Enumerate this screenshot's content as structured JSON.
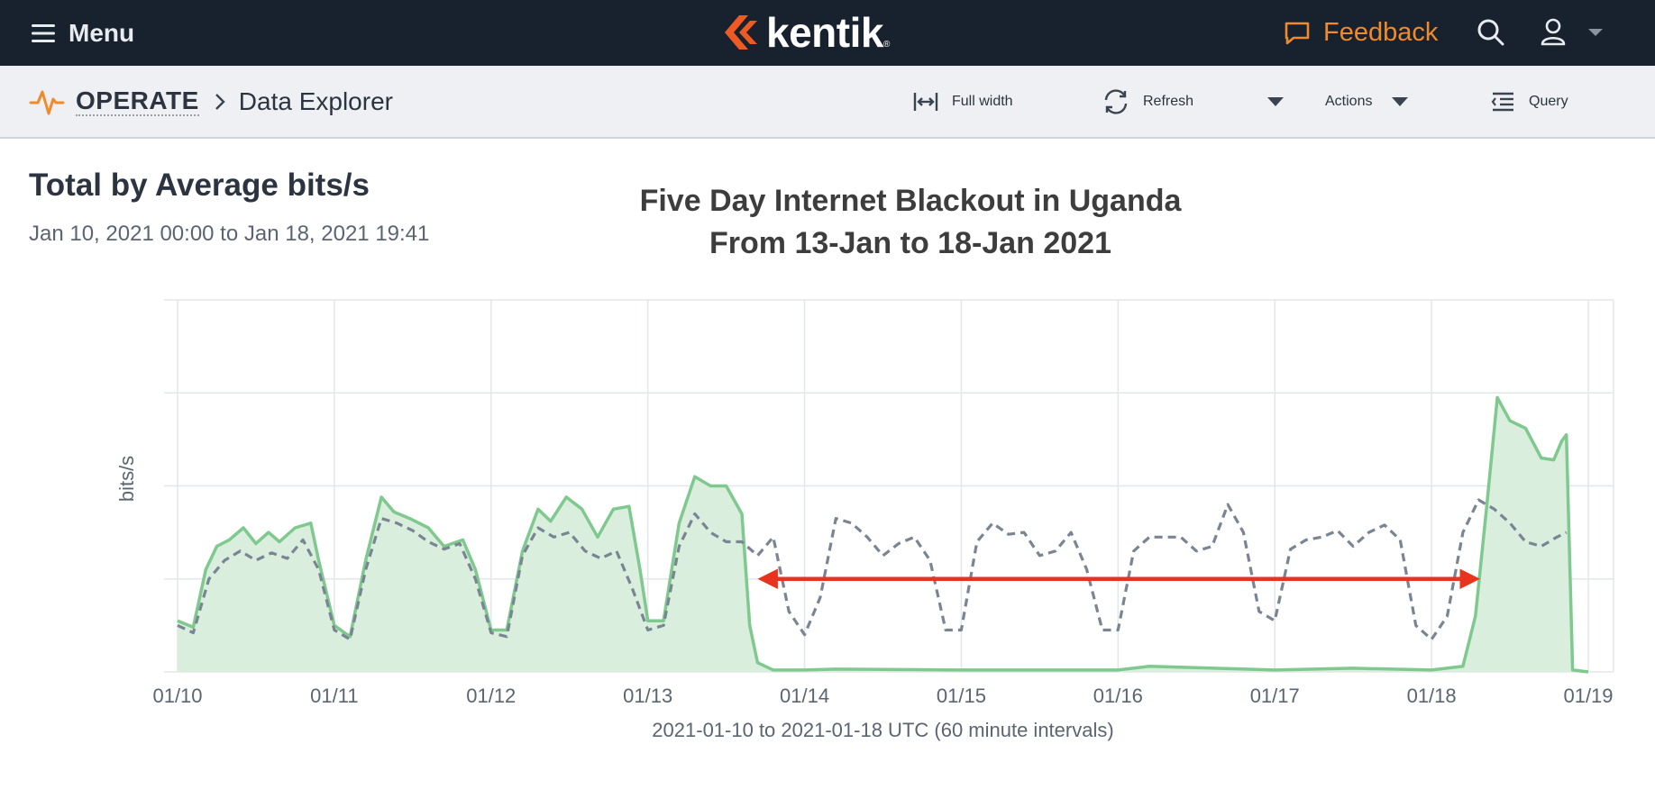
{
  "topbar": {
    "menu_label": "Menu",
    "logo_text": "kentik",
    "logo_mark": "®",
    "feedback_label": "Feedback",
    "accent": "#f08a2a",
    "logo_color": "#ee5a24"
  },
  "breadcrumb": {
    "section": "OPERATE",
    "page": "Data Explorer"
  },
  "toolbar": {
    "full_width_label": "Full width",
    "refresh_label": "Refresh",
    "actions_label": "Actions",
    "query_label": "Query"
  },
  "panel": {
    "title": "Total by Average bits/s",
    "range": "Jan 10, 2021 00:00 to Jan 18, 2021 19:41"
  },
  "overlay": {
    "line1": "Five Day Internet Blackout in Uganda",
    "line2": "From 13-Jan to 18-Jan 2021"
  },
  "chart_data": {
    "type": "area",
    "title": "Five Day Internet Blackout in Uganda From 13-Jan to 18-Jan 2021",
    "xlabel": "2021-01-10 to 2021-01-18 UTC (60 minute intervals)",
    "ylabel": "bits/s",
    "x_ticks": [
      "01/10",
      "01/11",
      "01/12",
      "01/13",
      "01/14",
      "01/15",
      "01/16",
      "01/17",
      "01/18",
      "01/19"
    ],
    "xlim": [
      0,
      9
    ],
    "ylim": [
      0,
      4
    ],
    "grid": true,
    "y_tick_labels_visible": false,
    "series": [
      {
        "style": "solid area",
        "color": "#7fc98f",
        "fill": "#d9eedd",
        "points": [
          [
            0,
            0.55
          ],
          [
            0.1,
            0.48
          ],
          [
            0.18,
            1.1
          ],
          [
            0.25,
            1.35
          ],
          [
            0.33,
            1.42
          ],
          [
            0.42,
            1.55
          ],
          [
            0.5,
            1.38
          ],
          [
            0.58,
            1.5
          ],
          [
            0.65,
            1.4
          ],
          [
            0.75,
            1.55
          ],
          [
            0.85,
            1.6
          ],
          [
            0.9,
            1.2
          ],
          [
            1.0,
            0.5
          ],
          [
            1.1,
            0.38
          ],
          [
            1.2,
            1.2
          ],
          [
            1.3,
            1.88
          ],
          [
            1.38,
            1.72
          ],
          [
            1.48,
            1.65
          ],
          [
            1.6,
            1.55
          ],
          [
            1.7,
            1.35
          ],
          [
            1.82,
            1.42
          ],
          [
            1.9,
            1.1
          ],
          [
            2.0,
            0.45
          ],
          [
            2.1,
            0.45
          ],
          [
            2.2,
            1.3
          ],
          [
            2.3,
            1.75
          ],
          [
            2.38,
            1.62
          ],
          [
            2.48,
            1.88
          ],
          [
            2.58,
            1.75
          ],
          [
            2.68,
            1.45
          ],
          [
            2.78,
            1.75
          ],
          [
            2.88,
            1.78
          ],
          [
            2.95,
            1.1
          ],
          [
            3.0,
            0.55
          ],
          [
            3.1,
            0.55
          ],
          [
            3.2,
            1.6
          ],
          [
            3.3,
            2.1
          ],
          [
            3.4,
            2.0
          ],
          [
            3.5,
            2.0
          ],
          [
            3.6,
            1.7
          ],
          [
            3.65,
            0.5
          ],
          [
            3.7,
            0.1
          ],
          [
            3.8,
            0.02
          ],
          [
            4.0,
            0.02
          ],
          [
            4.2,
            0.03
          ],
          [
            5.0,
            0.02
          ],
          [
            6.0,
            0.02
          ],
          [
            6.2,
            0.06
          ],
          [
            7.0,
            0.02
          ],
          [
            7.5,
            0.04
          ],
          [
            8.0,
            0.02
          ],
          [
            8.2,
            0.06
          ],
          [
            8.28,
            0.6
          ],
          [
            8.35,
            1.75
          ],
          [
            8.42,
            2.95
          ],
          [
            8.5,
            2.7
          ],
          [
            8.6,
            2.62
          ],
          [
            8.7,
            2.3
          ],
          [
            8.78,
            2.28
          ],
          [
            8.83,
            2.48
          ],
          [
            8.86,
            2.55
          ],
          [
            8.9,
            0.02
          ],
          [
            9.0,
            0.0
          ]
        ]
      },
      {
        "style": "dashed",
        "color": "#7a8594",
        "points": [
          [
            0,
            0.5
          ],
          [
            0.1,
            0.42
          ],
          [
            0.2,
            1.0
          ],
          [
            0.3,
            1.2
          ],
          [
            0.4,
            1.3
          ],
          [
            0.5,
            1.2
          ],
          [
            0.6,
            1.28
          ],
          [
            0.7,
            1.22
          ],
          [
            0.8,
            1.42
          ],
          [
            0.9,
            1.1
          ],
          [
            1.0,
            0.45
          ],
          [
            1.1,
            0.35
          ],
          [
            1.2,
            1.1
          ],
          [
            1.3,
            1.65
          ],
          [
            1.4,
            1.6
          ],
          [
            1.5,
            1.52
          ],
          [
            1.6,
            1.4
          ],
          [
            1.7,
            1.32
          ],
          [
            1.8,
            1.38
          ],
          [
            1.9,
            1.0
          ],
          [
            2.0,
            0.42
          ],
          [
            2.1,
            0.38
          ],
          [
            2.2,
            1.25
          ],
          [
            2.3,
            1.55
          ],
          [
            2.4,
            1.45
          ],
          [
            2.5,
            1.5
          ],
          [
            2.6,
            1.3
          ],
          [
            2.7,
            1.22
          ],
          [
            2.8,
            1.3
          ],
          [
            2.9,
            0.9
          ],
          [
            3.0,
            0.45
          ],
          [
            3.1,
            0.5
          ],
          [
            3.2,
            1.35
          ],
          [
            3.3,
            1.7
          ],
          [
            3.4,
            1.5
          ],
          [
            3.5,
            1.4
          ],
          [
            3.6,
            1.4
          ],
          [
            3.7,
            1.25
          ],
          [
            3.8,
            1.45
          ],
          [
            3.9,
            0.65
          ],
          [
            4.0,
            0.4
          ],
          [
            4.1,
            0.8
          ],
          [
            4.2,
            1.65
          ],
          [
            4.3,
            1.6
          ],
          [
            4.4,
            1.45
          ],
          [
            4.5,
            1.25
          ],
          [
            4.6,
            1.38
          ],
          [
            4.7,
            1.45
          ],
          [
            4.8,
            1.2
          ],
          [
            4.9,
            0.45
          ],
          [
            5.0,
            0.45
          ],
          [
            5.1,
            1.4
          ],
          [
            5.2,
            1.6
          ],
          [
            5.3,
            1.48
          ],
          [
            5.4,
            1.5
          ],
          [
            5.5,
            1.25
          ],
          [
            5.6,
            1.3
          ],
          [
            5.7,
            1.5
          ],
          [
            5.8,
            1.1
          ],
          [
            5.9,
            0.45
          ],
          [
            6.0,
            0.45
          ],
          [
            6.1,
            1.3
          ],
          [
            6.2,
            1.45
          ],
          [
            6.3,
            1.45
          ],
          [
            6.4,
            1.45
          ],
          [
            6.5,
            1.3
          ],
          [
            6.6,
            1.35
          ],
          [
            6.7,
            1.8
          ],
          [
            6.8,
            1.5
          ],
          [
            6.9,
            0.65
          ],
          [
            7.0,
            0.55
          ],
          [
            7.1,
            1.32
          ],
          [
            7.2,
            1.42
          ],
          [
            7.3,
            1.45
          ],
          [
            7.4,
            1.52
          ],
          [
            7.5,
            1.35
          ],
          [
            7.6,
            1.5
          ],
          [
            7.7,
            1.58
          ],
          [
            7.8,
            1.42
          ],
          [
            7.9,
            0.5
          ],
          [
            8.0,
            0.35
          ],
          [
            8.1,
            0.6
          ],
          [
            8.2,
            1.5
          ],
          [
            8.3,
            1.85
          ],
          [
            8.4,
            1.75
          ],
          [
            8.5,
            1.6
          ],
          [
            8.6,
            1.4
          ],
          [
            8.7,
            1.35
          ],
          [
            8.8,
            1.45
          ],
          [
            8.86,
            1.5
          ]
        ]
      }
    ],
    "annotation": {
      "type": "double-arrow",
      "color": "#e8331e",
      "x_from": 3.68,
      "x_to": 8.33,
      "y": 1.0
    }
  }
}
